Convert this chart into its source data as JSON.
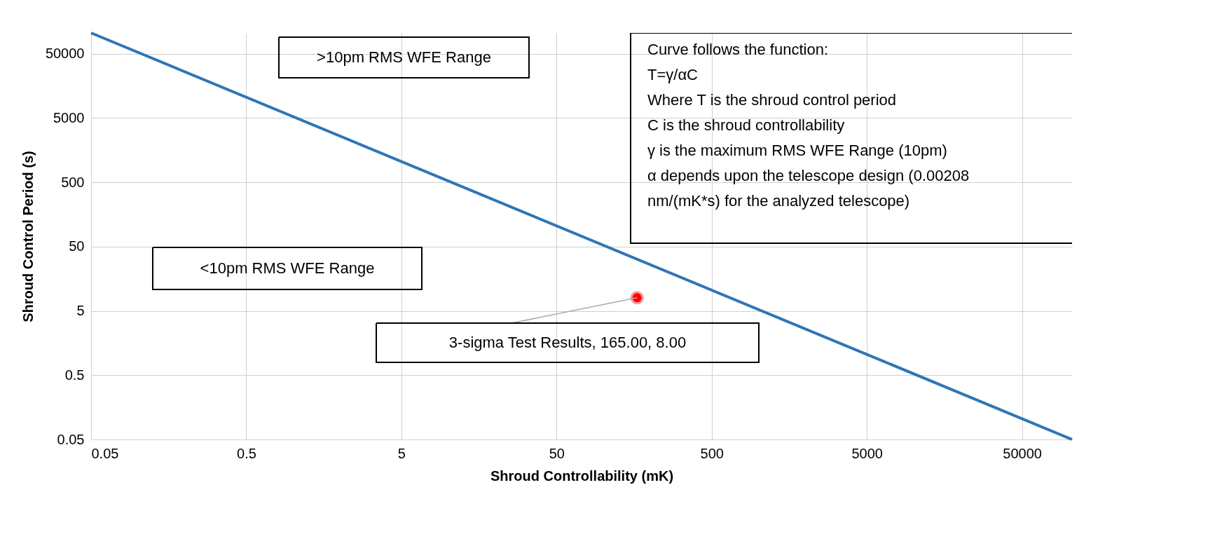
{
  "chart_data": {
    "type": "line",
    "xlabel": "Shroud Controllability (mK)",
    "ylabel": "Shroud Control Period (s)",
    "log": "xy",
    "xlim": [
      0.05,
      105000
    ],
    "ylim": [
      0.05,
      105000
    ],
    "xticks": [
      0.05,
      0.5,
      5,
      50,
      500,
      5000,
      50000
    ],
    "yticks": [
      0.05,
      0.5,
      5,
      50,
      500,
      5000,
      50000
    ],
    "grid": true,
    "series": [
      {
        "color": "#2e75b6",
        "x": [
          0.05,
          105000
        ],
        "values": [
          105000,
          0.05
        ],
        "line_style": "solid"
      },
      {
        "type": "scatter",
        "color": "#ff0000",
        "x": [
          165
        ],
        "values": [
          8
        ],
        "marker": "circle"
      }
    ],
    "annotations": [
      ">10pm RMS WFE Range",
      "<10pm RMS WFE Range",
      "Curve follows the function:\nT=γ/αC\nWhere T is the shroud control period\nC is the shroud controllability\nγ is the maximum RMS WFE Range (10pm)\nα depends upon the telescope design (0.00208\nnm/(mK*s) for the analyzed telescope)",
      {
        "text": "3-sigma Test Results, 165.00, 8.00",
        "x": 165,
        "y": 8
      }
    ]
  }
}
